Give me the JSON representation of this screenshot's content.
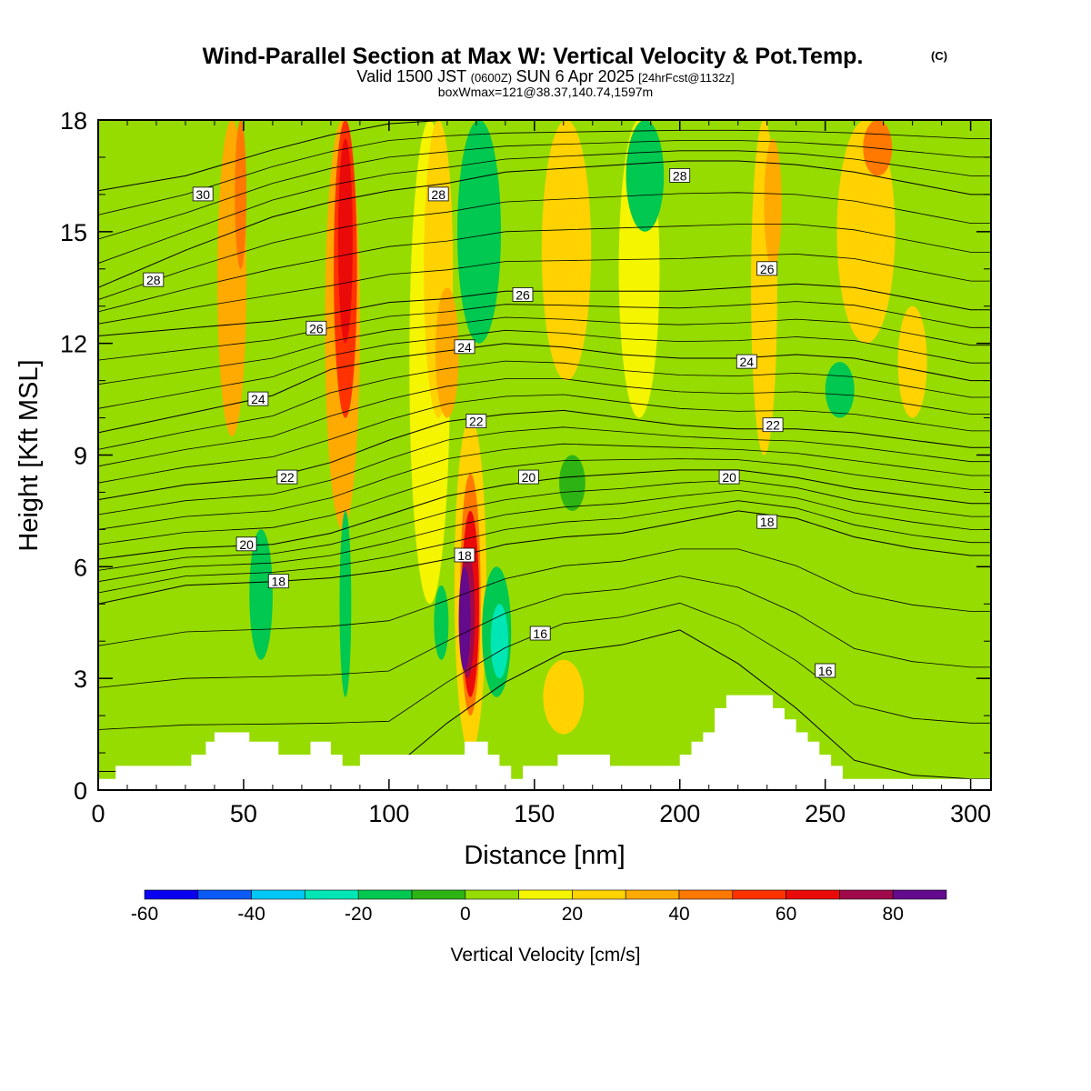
{
  "title": {
    "main": "Wind-Parallel Section at Max W: Vertical Velocity & Pot.Temp.",
    "copyright": "(C)",
    "valid_prefix": "Valid 1500 JST",
    "valid_utc": "(0600Z)",
    "valid_date": "SUN 6 Apr 2025",
    "forecast": "[24hrFcst@1132z]",
    "boxwmax": "boxWmax=121@38.37,140.74,1597m"
  },
  "chart_data": {
    "type": "heatmap",
    "xlabel": "Distance [nm]",
    "ylabel": "Height [Kft MSL]",
    "xlim": [
      0,
      307
    ],
    "ylim": [
      0,
      18
    ],
    "x_ticks": [
      0,
      50,
      100,
      150,
      200,
      250,
      300
    ],
    "y_ticks": [
      0,
      3,
      6,
      9,
      12,
      15,
      18
    ],
    "x_tick_labels": [
      "0",
      "50",
      "100",
      "150",
      "200",
      "250",
      "300"
    ],
    "y_tick_labels": [
      "0",
      "3",
      "6",
      "9",
      "12",
      "15",
      "18"
    ],
    "colorbar": {
      "label": "Vertical Velocity [cm/s]",
      "levels": [
        -60,
        -50,
        -40,
        -30,
        -20,
        -10,
        0,
        10,
        20,
        30,
        40,
        50,
        60,
        70,
        80,
        90
      ],
      "colors": [
        "#0a00f0",
        "#0a5af5",
        "#00c8f5",
        "#00e6b4",
        "#00c850",
        "#2db414",
        "#96dc00",
        "#f5f500",
        "#ffd200",
        "#ffaa00",
        "#ff7800",
        "#ff3200",
        "#eb0a0a",
        "#a00a4b",
        "#640a8c"
      ],
      "tick_values": [
        -60,
        -40,
        -20,
        0,
        20,
        40,
        60,
        80
      ],
      "tick_labels": [
        "-60",
        "-40",
        "-20",
        "0",
        "20",
        "40",
        "60",
        "80"
      ]
    },
    "background_level": 0,
    "vertical_velocity_features": [
      {
        "x": 46,
        "x0": 42,
        "x1": 52,
        "y0": 9.5,
        "y1": 18,
        "peak": 30
      },
      {
        "x": 49,
        "x0": 47,
        "x1": 51,
        "y0": 14,
        "y1": 18,
        "peak": 40
      },
      {
        "x": 84,
        "x0": 78,
        "x1": 90,
        "y0": 7,
        "y1": 18,
        "peak": 30
      },
      {
        "x": 85,
        "x0": 81,
        "x1": 89,
        "y0": 10,
        "y1": 18,
        "peak": 50
      },
      {
        "x": 85,
        "x0": 83,
        "x1": 88,
        "y0": 12,
        "y1": 17.5,
        "peak": 60
      },
      {
        "x": 114,
        "x0": 107,
        "x1": 121,
        "y0": 5,
        "y1": 18,
        "peak": 10
      },
      {
        "x": 117,
        "x0": 112,
        "x1": 122,
        "y0": 10,
        "y1": 18,
        "peak": 20
      },
      {
        "x": 120,
        "x0": 116,
        "x1": 124,
        "y0": 10,
        "y1": 13.5,
        "peak": 30
      },
      {
        "x": 128,
        "x0": 122,
        "x1": 133,
        "y0": 1,
        "y1": 10,
        "peak": 20
      },
      {
        "x": 128,
        "x0": 125,
        "x1": 132,
        "y0": 2,
        "y1": 8.5,
        "peak": 40
      },
      {
        "x": 128,
        "x0": 125,
        "x1": 131,
        "y0": 2.5,
        "y1": 7.5,
        "peak": 60
      },
      {
        "x": 127,
        "x0": 125,
        "x1": 130,
        "y0": 3,
        "y1": 6.5,
        "peak": 70
      },
      {
        "x": 126,
        "x0": 125,
        "x1": 129,
        "y0": 3.2,
        "y1": 6,
        "peak": 80
      },
      {
        "x": 161,
        "x0": 154,
        "x1": 171,
        "y0": 11,
        "y1": 18,
        "peak": 20
      },
      {
        "x": 160,
        "x0": 152,
        "x1": 166,
        "y0": 1.5,
        "y1": 3.5,
        "peak": 20
      },
      {
        "x": 186,
        "x0": 179,
        "x1": 193,
        "y0": 10,
        "y1": 18,
        "peak": 10
      },
      {
        "x": 229,
        "x0": 225,
        "x1": 234,
        "y0": 9,
        "y1": 18,
        "peak": 20
      },
      {
        "x": 232,
        "x0": 229,
        "x1": 235,
        "y0": 14,
        "y1": 17.5,
        "peak": 30
      },
      {
        "x": 264,
        "x0": 255,
        "x1": 275,
        "y0": 12,
        "y1": 18,
        "peak": 20
      },
      {
        "x": 268,
        "x0": 264,
        "x1": 274,
        "y0": 16.5,
        "y1": 18,
        "peak": 40
      },
      {
        "x": 280,
        "x0": 275,
        "x1": 285,
        "y0": 10,
        "y1": 13,
        "peak": 20
      },
      {
        "x": 28,
        "x0": 20,
        "x1": 36,
        "y0": 1,
        "y1": 9,
        "peak": 0
      },
      {
        "x": 137,
        "x0": 132,
        "x1": 142,
        "y0": 2.5,
        "y1": 6,
        "peak": -20
      },
      {
        "x": 138,
        "x0": 135,
        "x1": 141,
        "y0": 3,
        "y1": 5,
        "peak": -30
      },
      {
        "x": 118,
        "x0": 116,
        "x1": 121,
        "y0": 3.5,
        "y1": 5.5,
        "peak": -20
      },
      {
        "x": 85,
        "x0": 83,
        "x1": 87,
        "y0": 2.5,
        "y1": 7.5,
        "peak": -20
      },
      {
        "x": 56,
        "x0": 52,
        "x1": 60,
        "y0": 3.5,
        "y1": 7,
        "peak": -20
      },
      {
        "x": 131,
        "x0": 124,
        "x1": 139,
        "y0": 12,
        "y1": 18,
        "peak": -20
      },
      {
        "x": 188,
        "x0": 182,
        "x1": 195,
        "y0": 15,
        "y1": 18,
        "peak": -20
      },
      {
        "x": 163,
        "x0": 159,
        "x1": 168,
        "y0": 7.5,
        "y1": 9,
        "peak": -10
      },
      {
        "x": 255,
        "x0": 250,
        "x1": 260,
        "y0": 10,
        "y1": 11.5,
        "peak": -20
      }
    ],
    "potential_temperature_contours": {
      "x": [
        0,
        30,
        60,
        80,
        100,
        120,
        140,
        160,
        180,
        200,
        220,
        240,
        260,
        280,
        300,
        307
      ],
      "lines": [
        {
          "value": 16,
          "y": [
            0.5,
            0.5,
            0.5,
            0.5,
            0.5,
            1.8,
            2.9,
            3.7,
            3.9,
            4.3,
            3.4,
            2.2,
            0.8,
            0.4,
            0.3,
            0.3
          ]
        },
        {
          "value": 18,
          "y": [
            5.0,
            5.5,
            5.6,
            5.7,
            5.9,
            6.2,
            6.6,
            6.8,
            6.9,
            7.2,
            7.5,
            7.3,
            6.8,
            6.5,
            6.3,
            6.3
          ]
        },
        {
          "value": 20,
          "y": [
            6.2,
            6.5,
            6.6,
            6.9,
            7.4,
            7.9,
            8.2,
            8.4,
            8.5,
            8.6,
            8.6,
            8.4,
            8.1,
            7.9,
            7.7,
            7.7
          ]
        },
        {
          "value": 22,
          "y": [
            7.8,
            8.2,
            8.4,
            8.8,
            9.4,
            9.9,
            10.1,
            10.2,
            10.0,
            9.8,
            9.7,
            9.7,
            9.6,
            9.4,
            9.2,
            9.2
          ]
        },
        {
          "value": 24,
          "y": [
            9.6,
            10.1,
            10.6,
            11.3,
            11.6,
            11.8,
            12.0,
            11.9,
            11.7,
            11.6,
            11.6,
            11.7,
            11.6,
            11.3,
            11.0,
            11.0
          ]
        },
        {
          "value": 26,
          "y": [
            12.2,
            12.4,
            12.6,
            12.8,
            13.1,
            13.2,
            13.4,
            13.4,
            13.4,
            13.4,
            13.5,
            13.6,
            13.5,
            13.2,
            12.9,
            12.9
          ]
        },
        {
          "value": 28,
          "y": [
            13.5,
            14.5,
            15.4,
            15.8,
            16.1,
            16.3,
            16.6,
            16.7,
            16.8,
            16.9,
            16.9,
            16.8,
            16.6,
            16.3,
            16.0,
            16.0
          ]
        },
        {
          "value": 30,
          "y": [
            16.1,
            16.5,
            17.2,
            17.6,
            17.9,
            18.0,
            18.0,
            18.0,
            18.0,
            18.0,
            18.0,
            18.0,
            18.0,
            18.0,
            18.0,
            18.0
          ]
        }
      ],
      "intermediate_line_count": 3
    },
    "contour_labels": [
      {
        "text": "30",
        "x": 36,
        "y": 16.0
      },
      {
        "text": "28",
        "x": 19,
        "y": 13.7
      },
      {
        "text": "28",
        "x": 117,
        "y": 16.0
      },
      {
        "text": "28",
        "x": 200,
        "y": 16.5
      },
      {
        "text": "26",
        "x": 75,
        "y": 12.4
      },
      {
        "text": "26",
        "x": 146,
        "y": 13.3
      },
      {
        "text": "26",
        "x": 230,
        "y": 14.0
      },
      {
        "text": "24",
        "x": 55,
        "y": 10.5
      },
      {
        "text": "24",
        "x": 126,
        "y": 11.9
      },
      {
        "text": "24",
        "x": 223,
        "y": 11.5
      },
      {
        "text": "22",
        "x": 65,
        "y": 8.4
      },
      {
        "text": "22",
        "x": 130,
        "y": 9.9
      },
      {
        "text": "22",
        "x": 232,
        "y": 9.8
      },
      {
        "text": "20",
        "x": 51,
        "y": 6.6
      },
      {
        "text": "20",
        "x": 148,
        "y": 8.4
      },
      {
        "text": "20",
        "x": 217,
        "y": 8.4
      },
      {
        "text": "18",
        "x": 62,
        "y": 5.6
      },
      {
        "text": "18",
        "x": 126,
        "y": 6.3
      },
      {
        "text": "18",
        "x": 230,
        "y": 7.2
      },
      {
        "text": "16",
        "x": 152,
        "y": 4.2
      },
      {
        "text": "16",
        "x": 250,
        "y": 3.2
      }
    ],
    "terrain": {
      "x": [
        0,
        6,
        6,
        20,
        20,
        25,
        25,
        26,
        26,
        32,
        32,
        37,
        37,
        40,
        40,
        44,
        44,
        52,
        52,
        58,
        58,
        62,
        62,
        67,
        67,
        73,
        73,
        75,
        75,
        76,
        76,
        80,
        80,
        84,
        84,
        90,
        90,
        95,
        95,
        100,
        100,
        106,
        106,
        120,
        120,
        126,
        126,
        129,
        129,
        134,
        134,
        138,
        138,
        142,
        142,
        146,
        146,
        158,
        158,
        164,
        164,
        176,
        176,
        186,
        186,
        196,
        196,
        200,
        200,
        204,
        204,
        208,
        208,
        212,
        212,
        216,
        216,
        232,
        232,
        236,
        236,
        240,
        240,
        244,
        244,
        248,
        248,
        252,
        252,
        256,
        256,
        262,
        262,
        307
      ],
      "y": [
        0.3,
        0.3,
        0.65,
        0.65,
        0.65,
        0.65,
        0.65,
        0.65,
        0.65,
        0.65,
        0.95,
        0.95,
        1.3,
        1.3,
        1.55,
        1.55,
        1.55,
        1.55,
        1.3,
        1.3,
        1.3,
        1.3,
        0.95,
        0.95,
        0.95,
        0.95,
        1.3,
        1.3,
        1.3,
        1.3,
        1.3,
        1.3,
        0.95,
        0.95,
        0.65,
        0.65,
        0.95,
        0.95,
        0.95,
        0.95,
        0.95,
        0.95,
        0.95,
        0.95,
        0.95,
        0.95,
        1.3,
        1.3,
        1.3,
        1.3,
        0.95,
        0.95,
        0.65,
        0.65,
        0.3,
        0.3,
        0.65,
        0.65,
        0.95,
        0.95,
        0.95,
        0.95,
        0.65,
        0.65,
        0.65,
        0.65,
        0.65,
        0.65,
        0.95,
        0.95,
        1.3,
        1.3,
        1.55,
        1.55,
        2.2,
        2.2,
        2.55,
        2.55,
        2.2,
        2.2,
        1.9,
        1.9,
        1.55,
        1.55,
        1.3,
        1.3,
        0.95,
        0.95,
        0.65,
        0.65,
        0.3,
        0.3,
        0.3,
        0.3
      ]
    }
  }
}
